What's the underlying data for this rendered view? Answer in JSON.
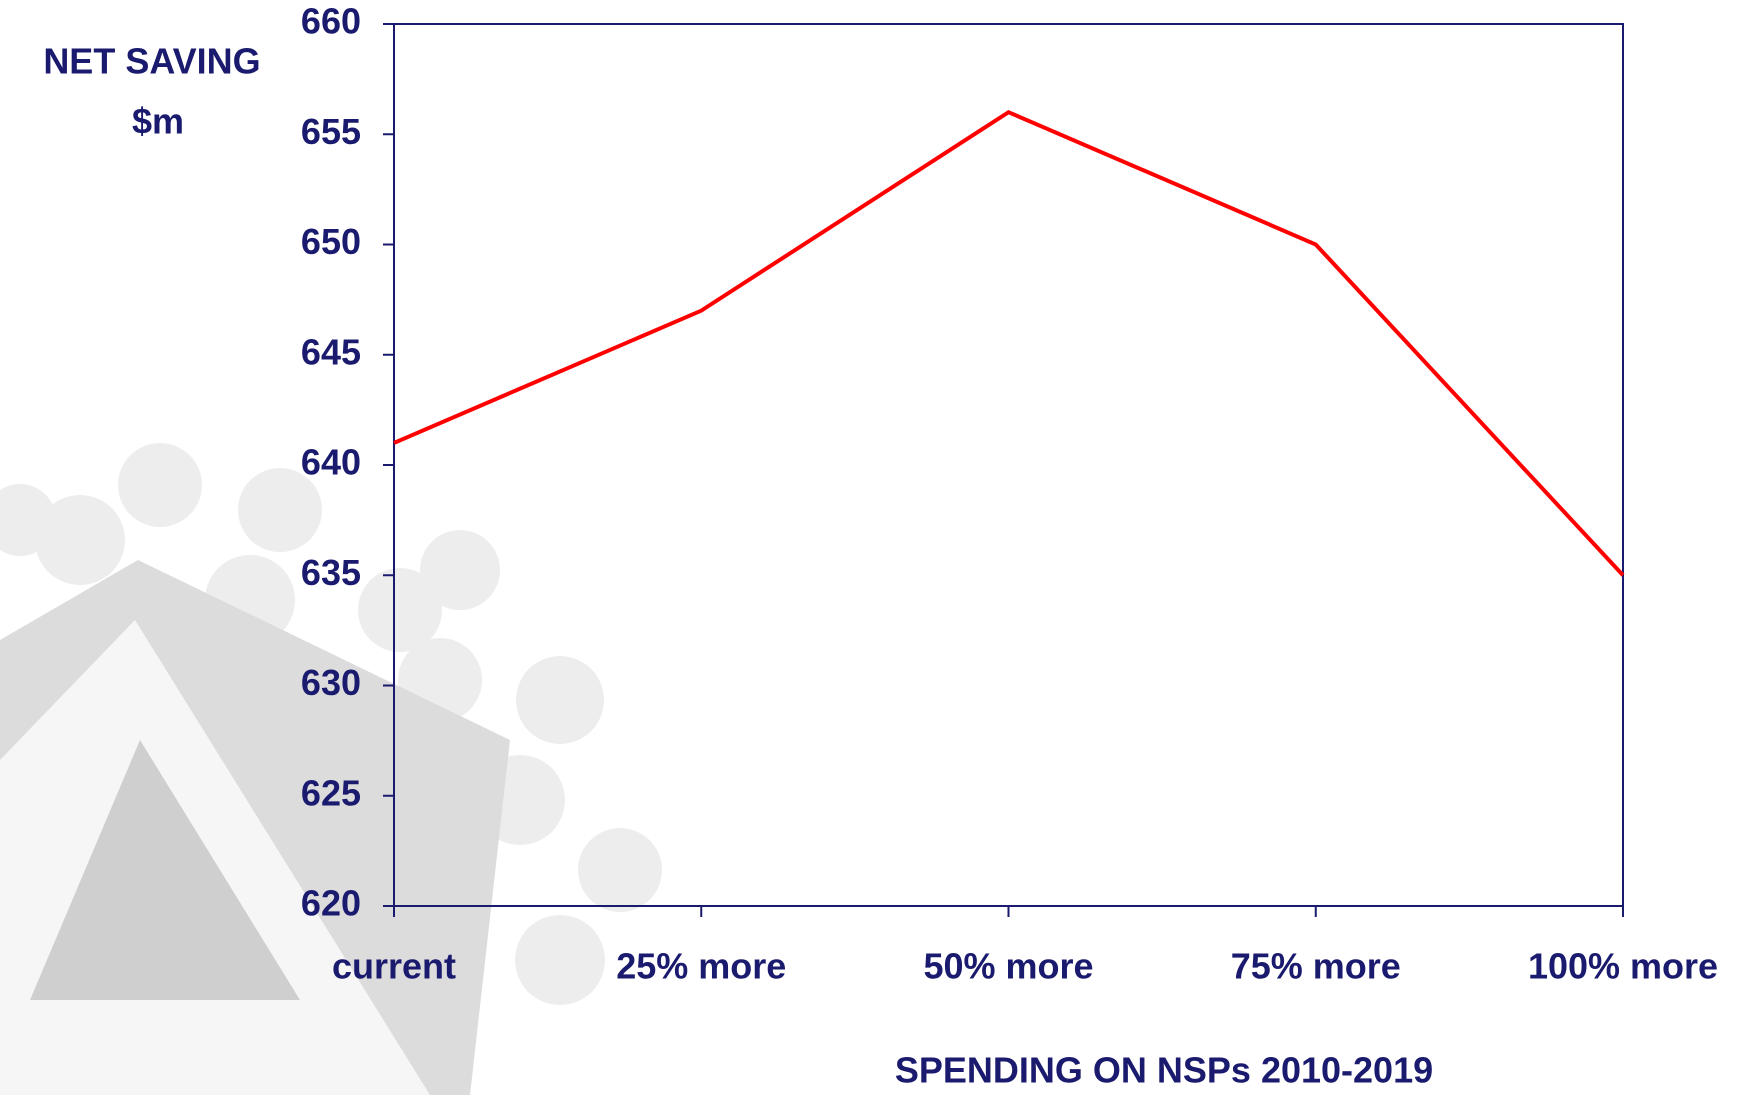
{
  "chart_data": {
    "type": "line",
    "y_label": [
      "NET SAVING",
      "$m"
    ],
    "x_label": "SPENDING ON NSPs 2010-2019",
    "categories": [
      "current",
      "25% more",
      "50% more",
      "75% more",
      "100% more"
    ],
    "series": [
      {
        "color": "#ff0000",
        "values": [
          641,
          647,
          656,
          650,
          635
        ]
      }
    ],
    "ylim": [
      620,
      660
    ],
    "yticks": [
      620,
      625,
      630,
      635,
      640,
      645,
      650,
      655,
      660
    ]
  }
}
